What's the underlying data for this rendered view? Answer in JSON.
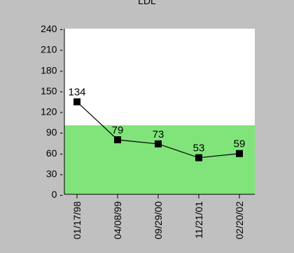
{
  "chart_data": {
    "type": "line",
    "title": "LDL",
    "xlabel": "",
    "ylabel": "",
    "categories": [
      "01/17/98",
      "04/08/99",
      "09/29/00",
      "11/21/01",
      "02/20/02"
    ],
    "series": [
      {
        "values": [
          134,
          79,
          73,
          53,
          59
        ]
      }
    ],
    "data_labels": [
      "134",
      "79",
      "73",
      "53",
      "59"
    ],
    "ylim": [
      0,
      240
    ],
    "yticks": [
      0,
      30,
      60,
      90,
      120,
      150,
      180,
      210,
      240
    ],
    "ytick_labels": [
      "0 -",
      "30 -",
      "60 -",
      "90 -",
      "120 -",
      "150 -",
      "180 -",
      "210 -",
      "240 -"
    ],
    "target_range": [
      0,
      100
    ],
    "grid": false,
    "legend": "none"
  },
  "colors": {
    "frame": "#c0c0c0",
    "plot_background": "#ffffff",
    "target_band": "#80e47a",
    "line": "#000000",
    "marker": "#000000"
  }
}
